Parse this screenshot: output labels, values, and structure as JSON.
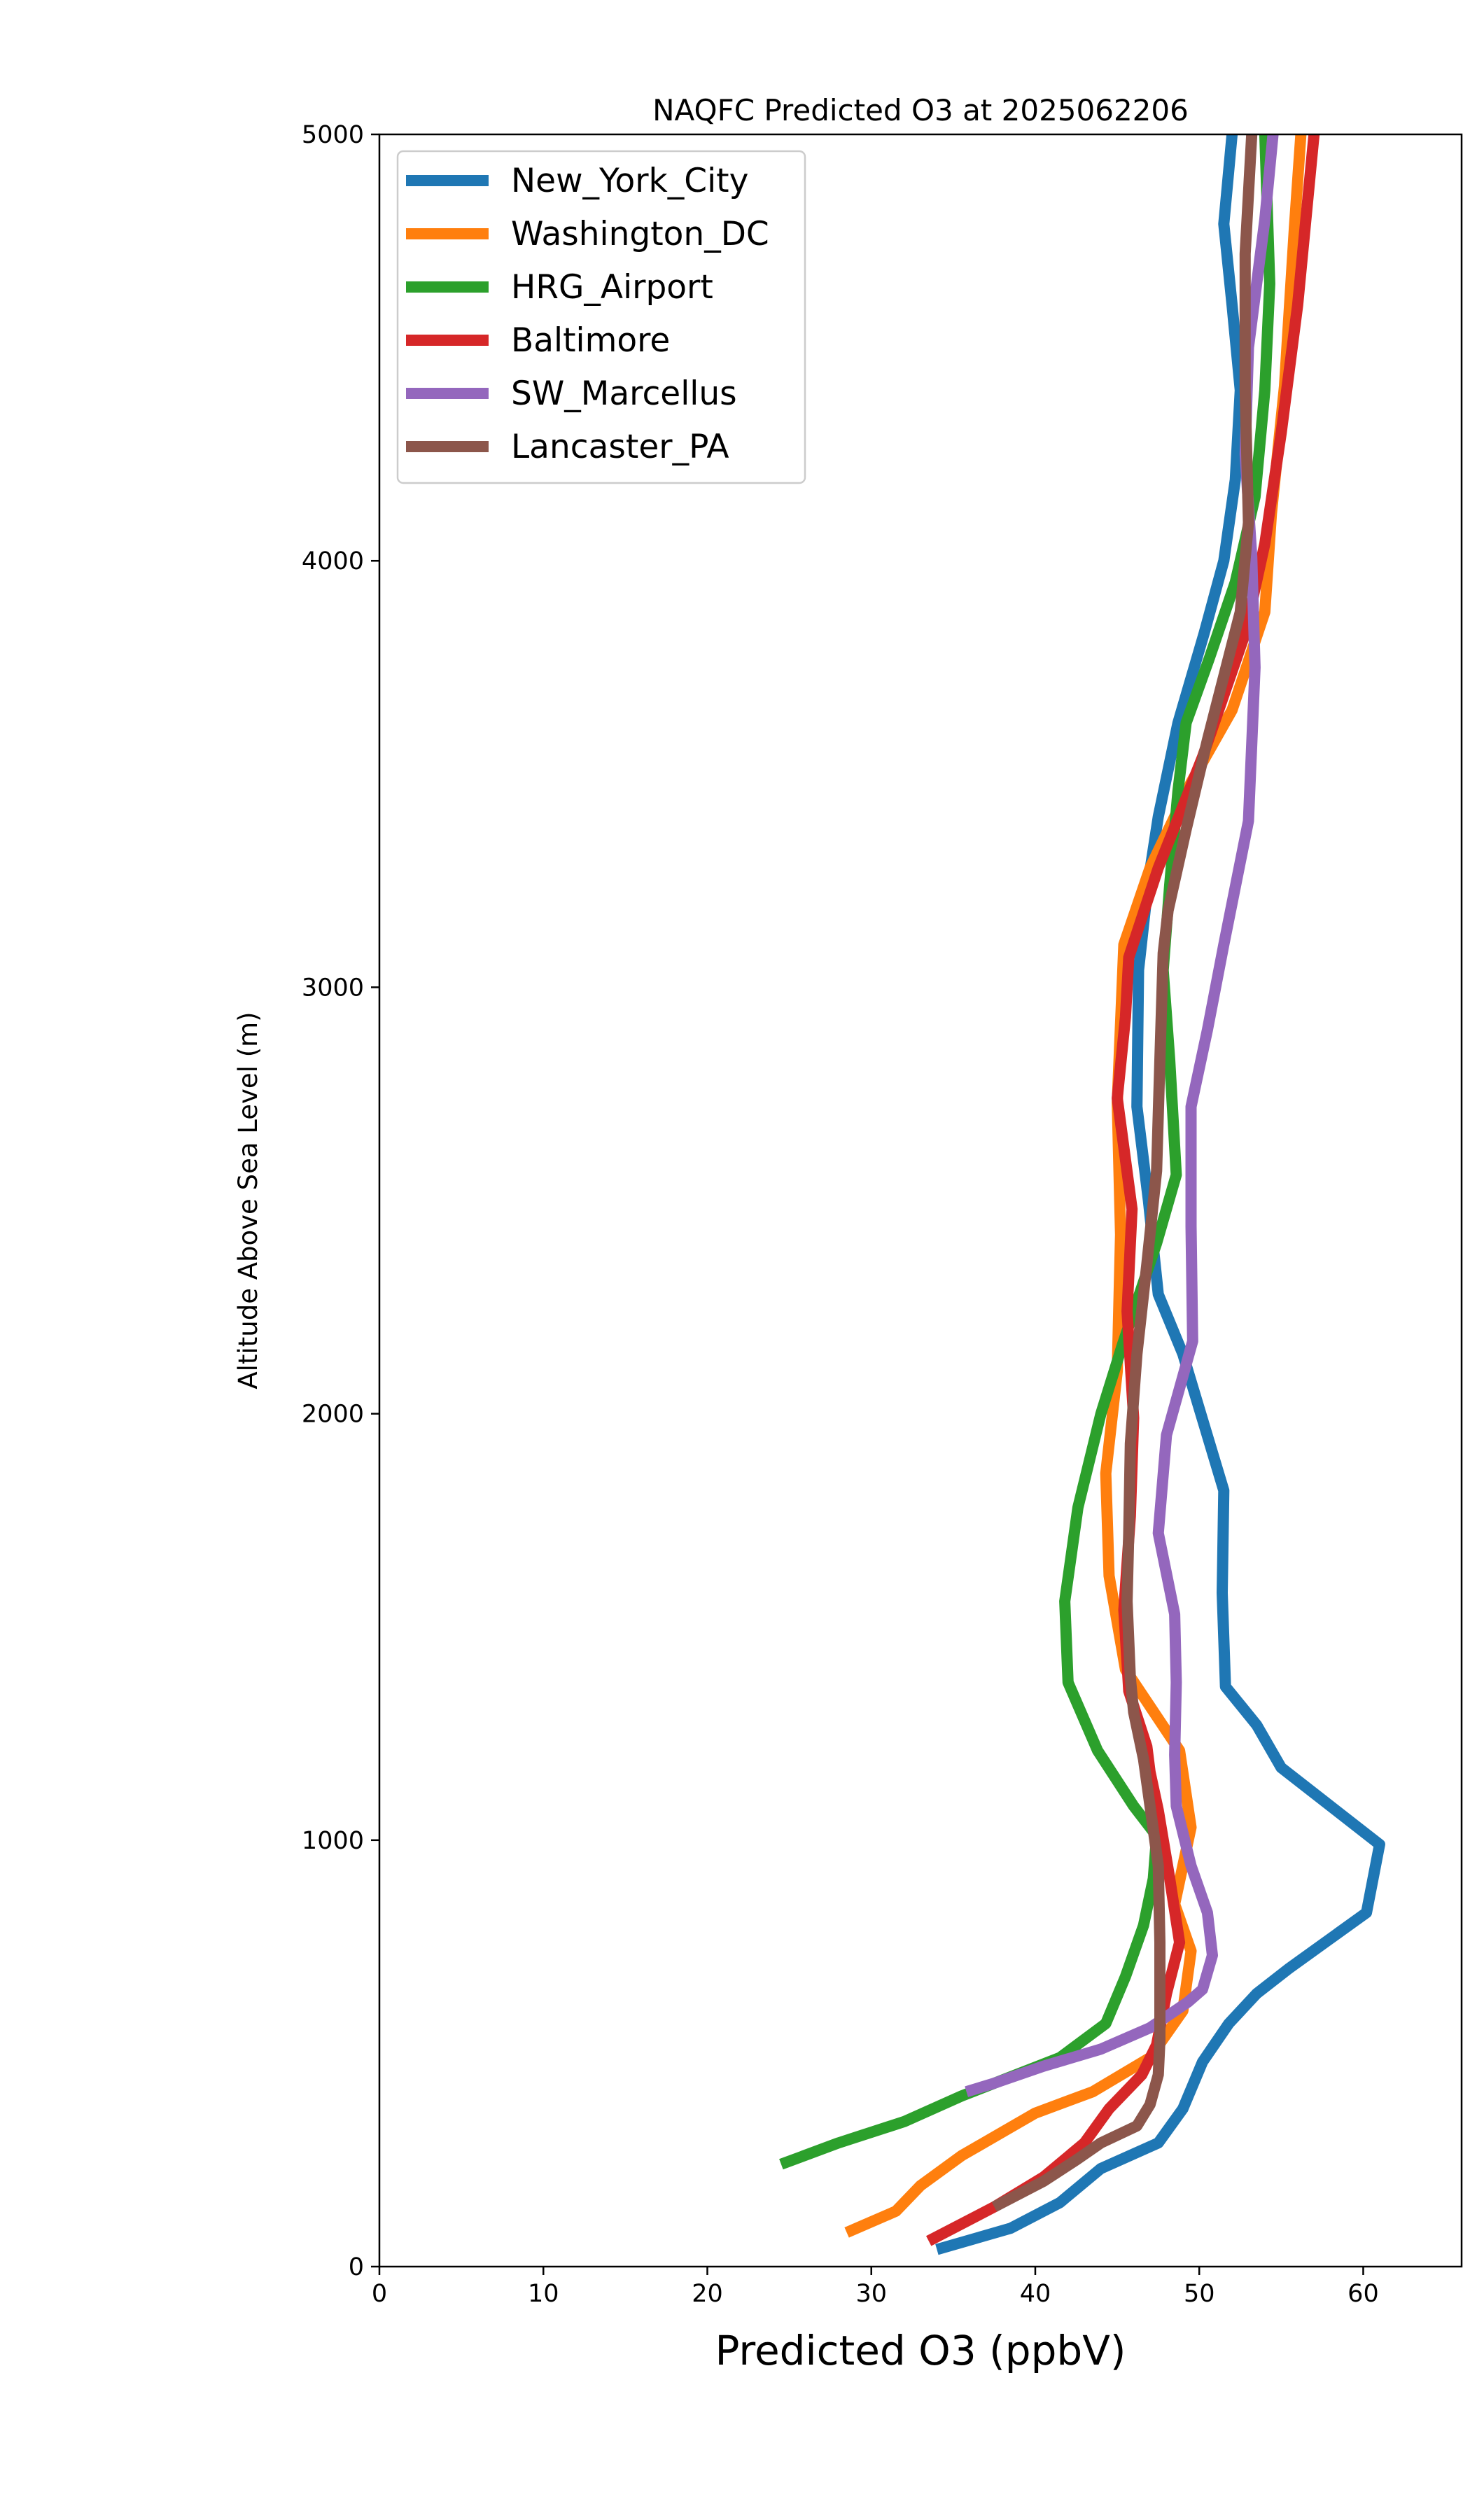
{
  "chart_data": {
    "type": "line",
    "title": "NAQFC Predicted O3 at 2025062206",
    "xlabel": "Predicted O3 (ppbV)",
    "ylabel": "Altitude Above Sea Level (m)",
    "xlim": [
      0,
      66
    ],
    "ylim": [
      0,
      5000
    ],
    "xticks": [
      0,
      10,
      20,
      30,
      40,
      50,
      60
    ],
    "yticks": [
      0,
      1000,
      2000,
      3000,
      4000,
      5000
    ],
    "grid": false,
    "legend_position": "top-left",
    "series": [
      {
        "name": "New_York_City",
        "color": "#1f77b4",
        "points": [
          [
            34.0,
            40
          ],
          [
            38.5,
            90
          ],
          [
            41.5,
            150
          ],
          [
            44.0,
            230
          ],
          [
            47.5,
            290
          ],
          [
            49.0,
            370
          ],
          [
            50.2,
            480
          ],
          [
            51.8,
            570
          ],
          [
            53.5,
            640
          ],
          [
            55.5,
            700
          ],
          [
            60.2,
            830
          ],
          [
            61.0,
            990
          ],
          [
            55.0,
            1170
          ],
          [
            53.5,
            1270
          ],
          [
            51.6,
            1360
          ],
          [
            51.4,
            1580
          ],
          [
            51.5,
            1820
          ],
          [
            49.0,
            2140
          ],
          [
            47.5,
            2280
          ],
          [
            46.9,
            2500
          ],
          [
            46.2,
            2720
          ],
          [
            46.3,
            3040
          ],
          [
            46.9,
            3250
          ],
          [
            47.5,
            3400
          ],
          [
            48.7,
            3620
          ],
          [
            50.3,
            3830
          ],
          [
            51.5,
            4000
          ],
          [
            52.2,
            4190
          ],
          [
            52.5,
            4400
          ],
          [
            52.0,
            4600
          ],
          [
            51.5,
            4790
          ],
          [
            52.0,
            5000
          ]
        ]
      },
      {
        "name": "Washington_DC",
        "color": "#ff7f0e",
        "points": [
          [
            28.5,
            80
          ],
          [
            31.5,
            130
          ],
          [
            33.0,
            190
          ],
          [
            35.5,
            260
          ],
          [
            40.0,
            360
          ],
          [
            43.5,
            410
          ],
          [
            47.0,
            490
          ],
          [
            49.0,
            600
          ],
          [
            49.5,
            740
          ],
          [
            48.5,
            850
          ],
          [
            49.5,
            1030
          ],
          [
            48.8,
            1210
          ],
          [
            45.5,
            1400
          ],
          [
            44.5,
            1620
          ],
          [
            44.3,
            1860
          ],
          [
            45.0,
            2100
          ],
          [
            45.2,
            2420
          ],
          [
            45.0,
            2730
          ],
          [
            45.4,
            3100
          ],
          [
            47.0,
            3280
          ],
          [
            49.5,
            3480
          ],
          [
            52.0,
            3650
          ],
          [
            54.0,
            3880
          ],
          [
            54.4,
            4110
          ],
          [
            55.2,
            4410
          ],
          [
            55.8,
            4780
          ],
          [
            56.2,
            5000
          ]
        ]
      },
      {
        "name": "HRG_Airport",
        "color": "#2ca02c",
        "points": [
          [
            24.5,
            240
          ],
          [
            28.0,
            290
          ],
          [
            32.0,
            340
          ],
          [
            35.5,
            400
          ],
          [
            41.5,
            490
          ],
          [
            44.3,
            570
          ],
          [
            45.5,
            680
          ],
          [
            46.6,
            800
          ],
          [
            47.2,
            910
          ],
          [
            47.4,
            1010
          ],
          [
            46.0,
            1080
          ],
          [
            43.8,
            1210
          ],
          [
            42.0,
            1370
          ],
          [
            41.8,
            1560
          ],
          [
            42.6,
            1780
          ],
          [
            44.0,
            2000
          ],
          [
            45.3,
            2160
          ],
          [
            47.4,
            2400
          ],
          [
            48.6,
            2560
          ],
          [
            48.2,
            2830
          ],
          [
            47.8,
            3040
          ],
          [
            48.2,
            3240
          ],
          [
            48.7,
            3460
          ],
          [
            49.2,
            3620
          ],
          [
            50.6,
            3770
          ],
          [
            52.2,
            3950
          ],
          [
            53.4,
            4150
          ],
          [
            54.0,
            4400
          ],
          [
            54.3,
            4650
          ],
          [
            54.0,
            5000
          ]
        ]
      },
      {
        "name": "Baltimore",
        "color": "#d62728",
        "points": [
          [
            33.5,
            60
          ],
          [
            37.5,
            140
          ],
          [
            40.5,
            210
          ],
          [
            43.0,
            290
          ],
          [
            44.5,
            370
          ],
          [
            46.5,
            450
          ],
          [
            47.4,
            520
          ],
          [
            48.0,
            640
          ],
          [
            48.8,
            760
          ],
          [
            48.2,
            910
          ],
          [
            47.5,
            1070
          ],
          [
            47.0,
            1160
          ],
          [
            46.8,
            1220
          ],
          [
            45.7,
            1350
          ],
          [
            45.4,
            1540
          ],
          [
            45.8,
            1760
          ],
          [
            46.0,
            1990
          ],
          [
            45.6,
            2240
          ],
          [
            45.9,
            2480
          ],
          [
            45.0,
            2740
          ],
          [
            45.5,
            2930
          ],
          [
            45.7,
            3070
          ],
          [
            47.5,
            3280
          ],
          [
            50.2,
            3540
          ],
          [
            52.8,
            3830
          ],
          [
            54.0,
            4040
          ],
          [
            55.0,
            4300
          ],
          [
            56.0,
            4600
          ],
          [
            56.5,
            4800
          ],
          [
            57.0,
            5000
          ]
        ]
      },
      {
        "name": "SW_Marcellus",
        "color": "#9467bd",
        "points": [
          [
            35.8,
            410
          ],
          [
            37.5,
            430
          ],
          [
            40.5,
            470
          ],
          [
            44.0,
            510
          ],
          [
            47.0,
            560
          ],
          [
            49.3,
            620
          ],
          [
            50.2,
            650
          ],
          [
            50.8,
            730
          ],
          [
            50.5,
            830
          ],
          [
            49.5,
            940
          ],
          [
            48.6,
            1080
          ],
          [
            48.5,
            1200
          ],
          [
            48.6,
            1370
          ],
          [
            48.5,
            1530
          ],
          [
            47.5,
            1720
          ],
          [
            48.0,
            1950
          ],
          [
            49.6,
            2170
          ],
          [
            49.5,
            2440
          ],
          [
            49.5,
            2720
          ],
          [
            50.5,
            2900
          ],
          [
            51.5,
            3100
          ],
          [
            53.0,
            3390
          ],
          [
            53.4,
            3750
          ],
          [
            53.2,
            4010
          ],
          [
            52.8,
            4250
          ],
          [
            53.0,
            4500
          ],
          [
            54.0,
            4800
          ],
          [
            54.5,
            5000
          ]
        ]
      },
      {
        "name": "Lancaster_PA",
        "color": "#8c564b",
        "points": [
          [
            37.5,
            140
          ],
          [
            40.5,
            200
          ],
          [
            42.5,
            250
          ],
          [
            44.0,
            290
          ],
          [
            46.2,
            330
          ],
          [
            47.0,
            380
          ],
          [
            47.5,
            450
          ],
          [
            47.6,
            530
          ],
          [
            47.6,
            650
          ],
          [
            47.6,
            760
          ],
          [
            47.5,
            940
          ],
          [
            47.0,
            1080
          ],
          [
            46.6,
            1190
          ],
          [
            46.0,
            1300
          ],
          [
            45.8,
            1380
          ],
          [
            45.6,
            1560
          ],
          [
            45.7,
            1720
          ],
          [
            45.8,
            1930
          ],
          [
            46.2,
            2140
          ],
          [
            46.8,
            2350
          ],
          [
            47.4,
            2570
          ],
          [
            47.6,
            2830
          ],
          [
            47.8,
            3080
          ],
          [
            48.1,
            3180
          ],
          [
            49.2,
            3370
          ],
          [
            50.5,
            3580
          ],
          [
            52.5,
            3880
          ],
          [
            53.0,
            4090
          ],
          [
            52.8,
            4400
          ],
          [
            52.8,
            4720
          ],
          [
            53.2,
            5000
          ]
        ]
      }
    ]
  }
}
